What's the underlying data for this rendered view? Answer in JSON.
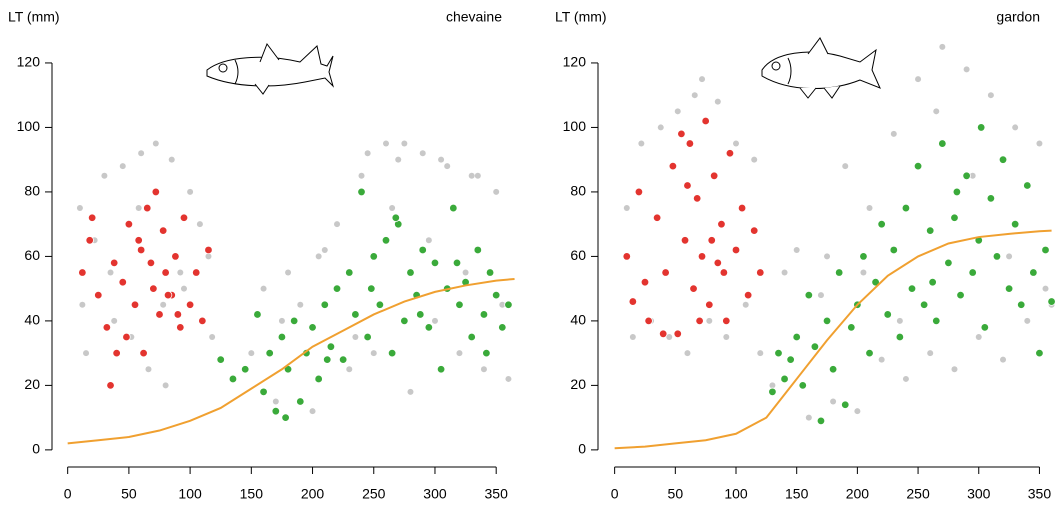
{
  "chart_data": [
    {
      "type": "scatter",
      "title": "chevaine",
      "y_label": "LT (mm)",
      "xlim": [
        -3,
        367
      ],
      "ylim": [
        -5,
        126
      ],
      "xticks": [
        0,
        50,
        100,
        150,
        200,
        250,
        300,
        350
      ],
      "yticks": [
        0,
        20,
        40,
        60,
        80,
        100,
        120
      ],
      "series": [
        {
          "mode": "points",
          "color": "#c8c8c8",
          "x": [
            10,
            15,
            22,
            30,
            38,
            45,
            52,
            60,
            66,
            72,
            78,
            85,
            92,
            100,
            108,
            115,
            118,
            12,
            35,
            58,
            80,
            95,
            150,
            160,
            170,
            180,
            190,
            200,
            210,
            220,
            230,
            240,
            250,
            260,
            270,
            280,
            290,
            300,
            310,
            320,
            330,
            340,
            350,
            360,
            175,
            205,
            235,
            265,
            295,
            325,
            355,
            245,
            275,
            305,
            335
          ],
          "values": [
            75,
            30,
            65,
            85,
            40,
            88,
            35,
            92,
            25,
            95,
            45,
            90,
            55,
            80,
            70,
            60,
            35,
            45,
            55,
            75,
            20,
            50,
            30,
            50,
            15,
            55,
            45,
            12,
            62,
            70,
            25,
            85,
            30,
            95,
            90,
            18,
            92,
            40,
            88,
            30,
            85,
            25,
            80,
            22,
            40,
            60,
            35,
            75,
            65,
            55,
            45,
            92,
            95,
            90,
            85
          ]
        },
        {
          "mode": "points",
          "color": "#e3342f",
          "x": [
            12,
            18,
            25,
            32,
            38,
            45,
            50,
            55,
            60,
            62,
            65,
            70,
            72,
            75,
            78,
            80,
            85,
            88,
            92,
            95,
            100,
            105,
            110,
            115,
            20,
            40,
            58,
            68,
            82,
            48,
            35,
            90
          ],
          "values": [
            55,
            65,
            48,
            38,
            58,
            52,
            70,
            45,
            62,
            30,
            75,
            50,
            80,
            42,
            68,
            55,
            48,
            60,
            38,
            72,
            45,
            55,
            40,
            62,
            72,
            30,
            65,
            58,
            48,
            35,
            20,
            42
          ]
        },
        {
          "mode": "points",
          "color": "#3aaa3a",
          "x": [
            125,
            135,
            145,
            155,
            160,
            165,
            170,
            175,
            180,
            185,
            190,
            195,
            200,
            205,
            210,
            215,
            220,
            225,
            230,
            235,
            240,
            245,
            250,
            255,
            260,
            265,
            270,
            275,
            280,
            285,
            290,
            295,
            300,
            305,
            310,
            315,
            320,
            325,
            330,
            335,
            340,
            345,
            350,
            355,
            360,
            178,
            212,
            248,
            268,
            288,
            318,
            342
          ],
          "values": [
            28,
            22,
            25,
            42,
            18,
            30,
            12,
            35,
            25,
            40,
            15,
            30,
            38,
            22,
            45,
            32,
            50,
            28,
            55,
            42,
            80,
            35,
            60,
            45,
            65,
            30,
            70,
            40,
            55,
            48,
            62,
            38,
            58,
            25,
            50,
            75,
            45,
            52,
            35,
            62,
            42,
            55,
            48,
            38,
            45,
            10,
            28,
            50,
            72,
            42,
            58,
            30
          ]
        },
        {
          "mode": "line",
          "color": "#f0a030",
          "x": [
            0,
            25,
            50,
            75,
            100,
            125,
            150,
            175,
            200,
            225,
            250,
            275,
            300,
            325,
            350,
            365
          ],
          "values": [
            2,
            3,
            4,
            6,
            9,
            13,
            19,
            25,
            32,
            37,
            42,
            46,
            49,
            51,
            52.5,
            53
          ]
        }
      ]
    },
    {
      "type": "scatter",
      "title": "gardon",
      "y_label": "LT (mm)",
      "xlim": [
        -3,
        362
      ],
      "ylim": [
        -5,
        126
      ],
      "xticks": [
        0,
        50,
        100,
        150,
        200,
        250,
        300,
        350
      ],
      "yticks": [
        0,
        20,
        40,
        60,
        80,
        100,
        120
      ],
      "series": [
        {
          "mode": "points",
          "color": "#c8c8c8",
          "x": [
            10,
            15,
            22,
            30,
            38,
            45,
            52,
            60,
            66,
            72,
            78,
            85,
            92,
            100,
            108,
            115,
            120,
            130,
            140,
            150,
            160,
            170,
            180,
            190,
            200,
            210,
            220,
            230,
            240,
            250,
            260,
            270,
            280,
            290,
            300,
            310,
            320,
            330,
            340,
            350,
            360,
            175,
            205,
            235,
            265,
            295,
            325,
            355
          ],
          "values": [
            75,
            35,
            95,
            40,
            100,
            35,
            105,
            30,
            110,
            115,
            40,
            108,
            35,
            95,
            45,
            90,
            30,
            20,
            55,
            62,
            10,
            48,
            15,
            88,
            12,
            75,
            28,
            98,
            22,
            115,
            30,
            125,
            25,
            118,
            35,
            110,
            28,
            100,
            40,
            95,
            45,
            60,
            55,
            40,
            105,
            85,
            60,
            50
          ]
        },
        {
          "mode": "points",
          "color": "#e3342f",
          "x": [
            10,
            15,
            20,
            28,
            35,
            42,
            48,
            52,
            58,
            62,
            65,
            68,
            72,
            75,
            78,
            82,
            85,
            88,
            92,
            95,
            100,
            105,
            110,
            115,
            120,
            40,
            55,
            70,
            80,
            25,
            60,
            90
          ],
          "values": [
            60,
            46,
            80,
            40,
            72,
            55,
            88,
            36,
            65,
            95,
            50,
            78,
            60,
            102,
            45,
            85,
            58,
            70,
            40,
            92,
            62,
            75,
            48,
            68,
            55,
            36,
            98,
            40,
            65,
            52,
            82,
            55
          ]
        },
        {
          "mode": "points",
          "color": "#3aaa3a",
          "x": [
            130,
            135,
            140,
            145,
            150,
            155,
            160,
            165,
            170,
            175,
            180,
            185,
            190,
            195,
            200,
            205,
            210,
            215,
            220,
            225,
            230,
            235,
            240,
            245,
            250,
            255,
            260,
            265,
            270,
            275,
            280,
            285,
            290,
            295,
            300,
            305,
            310,
            315,
            320,
            325,
            330,
            335,
            340,
            345,
            350,
            355,
            360,
            262,
            282,
            302
          ],
          "values": [
            18,
            30,
            22,
            28,
            35,
            20,
            48,
            32,
            9,
            40,
            25,
            55,
            14,
            38,
            45,
            60,
            30,
            52,
            70,
            42,
            62,
            35,
            75,
            50,
            88,
            45,
            68,
            40,
            95,
            58,
            72,
            48,
            85,
            55,
            65,
            38,
            78,
            60,
            90,
            50,
            70,
            45,
            82,
            55,
            30,
            62,
            46,
            52,
            80,
            100
          ]
        },
        {
          "mode": "line",
          "color": "#f0a030",
          "x": [
            0,
            25,
            50,
            75,
            100,
            125,
            150,
            175,
            200,
            225,
            250,
            275,
            300,
            325,
            350,
            360
          ],
          "values": [
            0.5,
            1,
            2,
            3,
            5,
            10,
            22,
            34,
            45,
            54,
            60,
            64,
            66,
            67,
            67.8,
            68
          ]
        }
      ]
    }
  ]
}
